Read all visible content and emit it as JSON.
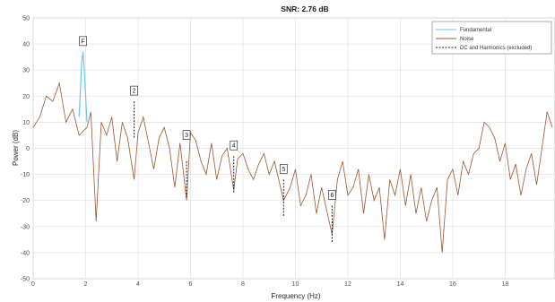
{
  "chart_data": {
    "type": "line",
    "title": "SNR:   2.76 dB",
    "xlabel": "Frequency (Hz)",
    "ylabel": "Power (dB)",
    "xlim": [
      0,
      19.9
    ],
    "ylim": [
      -50,
      50
    ],
    "x_ticks": [
      0,
      2,
      4,
      6,
      8,
      10,
      12,
      14,
      16,
      18
    ],
    "y_ticks": [
      50,
      40,
      30,
      20,
      10,
      0,
      -10,
      -20,
      -30,
      -40,
      -50
    ],
    "x_tick_labels": [
      "0",
      "2",
      "4",
      "6",
      "8",
      "10",
      "12",
      "14",
      "16",
      "18"
    ],
    "y_tick_labels": [
      "50",
      "40",
      "30",
      "20",
      "10",
      "0",
      "-10",
      "-20",
      "-30",
      "-40",
      "-50"
    ],
    "grid": true,
    "legend_position": "top-right",
    "colors": {
      "fundamental": "#6ec6e6",
      "noise": "#a0522d",
      "harmonics": "#1a1a1a"
    },
    "series": [
      {
        "name": "Fundamental",
        "x": [
          1.75,
          1.8,
          1.85,
          1.9,
          1.95,
          2.0,
          2.05
        ],
        "y": [
          12,
          22,
          33,
          37,
          30,
          20,
          10
        ]
      },
      {
        "name": "Noise",
        "x": [
          0,
          0.25,
          0.5,
          0.75,
          1.0,
          1.25,
          1.5,
          1.75,
          2.05,
          2.2,
          2.4,
          2.6,
          2.8,
          3.0,
          3.2,
          3.4,
          3.6,
          3.85,
          4.0,
          4.2,
          4.4,
          4.6,
          4.8,
          5.0,
          5.2,
          5.4,
          5.6,
          5.85,
          6.0,
          6.2,
          6.4,
          6.6,
          6.8,
          7.0,
          7.2,
          7.4,
          7.65,
          7.8,
          8.0,
          8.2,
          8.4,
          8.6,
          8.8,
          9.0,
          9.2,
          9.55,
          9.8,
          10.0,
          10.2,
          10.4,
          10.6,
          10.8,
          11.0,
          11.4,
          11.6,
          11.8,
          12.0,
          12.2,
          12.4,
          12.6,
          12.8,
          13.0,
          13.2,
          13.4,
          13.6,
          13.8,
          14.0,
          14.2,
          14.4,
          14.6,
          14.8,
          15.0,
          15.2,
          15.4,
          15.6,
          15.8,
          16.0,
          16.2,
          16.4,
          16.6,
          16.8,
          17.0,
          17.2,
          17.4,
          17.6,
          17.8,
          18.0,
          18.2,
          18.4,
          18.6,
          18.8,
          19.0,
          19.2,
          19.4,
          19.6,
          19.8
        ],
        "y": [
          8,
          12,
          20,
          18,
          25,
          10,
          15,
          5,
          8,
          14,
          -28,
          10,
          5,
          12,
          -5,
          10,
          4,
          -12,
          6,
          12,
          2,
          -8,
          4,
          8,
          0,
          -15,
          2,
          -20,
          6,
          3,
          -5,
          -10,
          2,
          -12,
          -3,
          0,
          -16,
          -4,
          -2,
          -8,
          -12,
          -6,
          -2,
          -10,
          -5,
          -20,
          -15,
          -8,
          -22,
          -18,
          -10,
          -25,
          -15,
          -33,
          -12,
          -5,
          -18,
          -15,
          -8,
          -25,
          -10,
          -20,
          -15,
          -35,
          -12,
          -18,
          -8,
          -22,
          -10,
          -25,
          -15,
          -28,
          -20,
          -15,
          -40,
          -12,
          -8,
          -18,
          -5,
          -10,
          -2,
          0,
          10,
          8,
          4,
          -5,
          2,
          -12,
          -6,
          -18,
          -8,
          -2,
          -14,
          0,
          14,
          8
        ]
      },
      {
        "name": "DC and Harmonics (excluded)",
        "x": [
          3.85,
          5.85,
          7.65,
          9.55,
          11.4
        ],
        "y": [
          18,
          -5,
          -3,
          -12,
          -22
        ]
      }
    ],
    "annotations": [
      {
        "label": "F",
        "x": 1.9,
        "y": 37
      },
      {
        "label": "2",
        "x": 3.85,
        "y": 18
      },
      {
        "label": "3",
        "x": 5.85,
        "y": 1
      },
      {
        "label": "4",
        "x": 7.65,
        "y": -3
      },
      {
        "label": "5",
        "x": 9.55,
        "y": -12
      },
      {
        "label": "6",
        "x": 11.4,
        "y": -22
      }
    ]
  }
}
